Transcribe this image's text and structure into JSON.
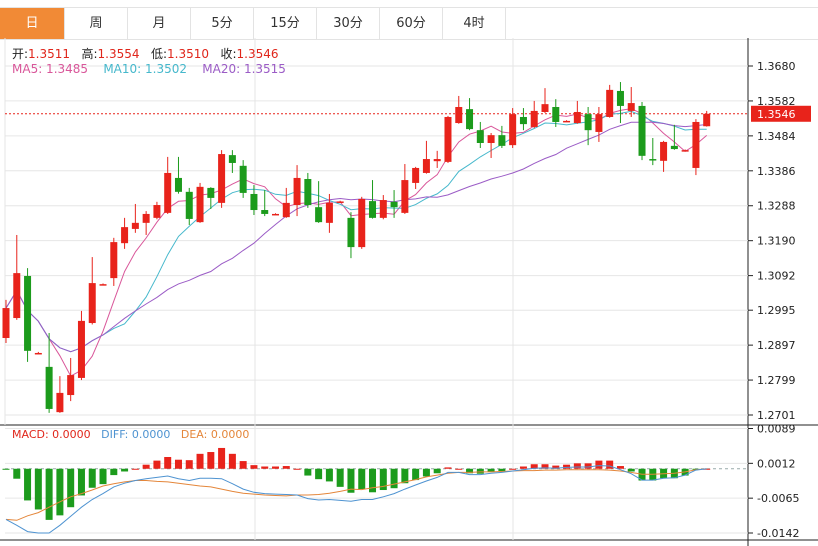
{
  "tabs": [
    {
      "label": "日",
      "active": true
    },
    {
      "label": "周"
    },
    {
      "label": "月"
    },
    {
      "label": "5分"
    },
    {
      "label": "15分"
    },
    {
      "label": "30分"
    },
    {
      "label": "60分"
    },
    {
      "label": "4时"
    }
  ],
  "legend": {
    "open_label": "开:",
    "open": "1.3511",
    "high_label": "高:",
    "high": "1.3554",
    "low_label": "低:",
    "low": "1.3510",
    "close_label": "收:",
    "close": "1.3546",
    "ma5": "MA5: 1.3485",
    "ma10": "MA10: 1.3502",
    "ma20": "MA20: 1.3515"
  },
  "macd_legend": {
    "macd": "MACD: 0.0000",
    "diff": "DIFF: 0.0000",
    "dea": "DEA: 0.0000"
  },
  "colors": {
    "up": "#e8231b",
    "down": "#1c9b1c",
    "accent_tab": "#f18a36",
    "ma5": "#d9579a",
    "ma10": "#46b8cc",
    "ma20": "#9b5cc6",
    "diff": "#4e93d1",
    "dea": "#e4863a"
  },
  "chart_data": [
    {
      "type": "candlestick",
      "up_color_meaning": "red = up, green = down",
      "yticks": [
        "1.3680",
        "1.3582",
        "1.3484",
        "1.3386",
        "1.3288",
        "1.3190",
        "1.3092",
        "1.2995",
        "1.2897",
        "1.2799",
        "1.2701"
      ],
      "ylim": [
        1.268,
        1.377
      ],
      "last_price": "1.3546",
      "grid": true,
      "ohlc": [
        [
          1.2917,
          1.3024,
          1.2903,
          1.3001
        ],
        [
          1.2973,
          1.3206,
          1.2968,
          1.3099
        ],
        [
          1.3091,
          1.3113,
          1.285,
          1.2881
        ],
        [
          1.2875,
          1.2878,
          1.2872,
          1.2875
        ],
        [
          1.2836,
          1.2931,
          1.2707,
          1.2718
        ],
        [
          1.2709,
          1.281,
          1.2707,
          1.2763
        ],
        [
          1.2757,
          1.2861,
          1.274,
          1.2813
        ],
        [
          1.2805,
          1.2993,
          1.2799,
          1.2965
        ],
        [
          1.2959,
          1.3144,
          1.2955,
          1.3071
        ],
        [
          1.3068,
          1.307,
          1.3066,
          1.3068
        ],
        [
          1.3085,
          1.3198,
          1.3063,
          1.3186
        ],
        [
          1.3183,
          1.3254,
          1.3167,
          1.3228
        ],
        [
          1.3223,
          1.3293,
          1.3212,
          1.324
        ],
        [
          1.324,
          1.3273,
          1.3206,
          1.3265
        ],
        [
          1.3254,
          1.3299,
          1.325,
          1.329
        ],
        [
          1.3268,
          1.3425,
          1.3265,
          1.338
        ],
        [
          1.3366,
          1.3425,
          1.3322,
          1.3327
        ],
        [
          1.3327,
          1.3338,
          1.3234,
          1.3251
        ],
        [
          1.3242,
          1.3352,
          1.324,
          1.3341
        ],
        [
          1.3338,
          1.334,
          1.3279,
          1.331
        ],
        [
          1.3296,
          1.3444,
          1.3282,
          1.3433
        ],
        [
          1.343,
          1.3444,
          1.338,
          1.3408
        ],
        [
          1.34,
          1.3416,
          1.331,
          1.3324
        ],
        [
          1.3321,
          1.3346,
          1.3262,
          1.3276
        ],
        [
          1.3276,
          1.3332,
          1.3259,
          1.3265
        ],
        [
          1.3265,
          1.3267,
          1.3263,
          1.3265
        ],
        [
          1.3256,
          1.3338,
          1.3254,
          1.3296
        ],
        [
          1.329,
          1.3402,
          1.3259,
          1.3366
        ],
        [
          1.3363,
          1.338,
          1.3282,
          1.329
        ],
        [
          1.3284,
          1.3357,
          1.324,
          1.3242
        ],
        [
          1.324,
          1.3321,
          1.3212,
          1.3296
        ],
        [
          1.33,
          1.3302,
          1.3298,
          1.33
        ],
        [
          1.3254,
          1.327,
          1.3141,
          1.3172
        ],
        [
          1.3172,
          1.3313,
          1.3167,
          1.3307
        ],
        [
          1.3301,
          1.336,
          1.3252,
          1.3254
        ],
        [
          1.3254,
          1.3318,
          1.325,
          1.3304
        ],
        [
          1.3299,
          1.3332,
          1.3254,
          1.3284
        ],
        [
          1.3268,
          1.3405,
          1.3265,
          1.336
        ],
        [
          1.3352,
          1.3397,
          1.3335,
          1.3394
        ],
        [
          1.338,
          1.347,
          1.3378,
          1.3419
        ],
        [
          1.3413,
          1.3442,
          1.3394,
          1.3419
        ],
        [
          1.3411,
          1.354,
          1.3408,
          1.3537
        ],
        [
          1.352,
          1.3596,
          1.3518,
          1.3565
        ],
        [
          1.3559,
          1.359,
          1.35,
          1.3503
        ],
        [
          1.35,
          1.3523,
          1.345,
          1.3464
        ],
        [
          1.3464,
          1.3492,
          1.3422,
          1.3486
        ],
        [
          1.3486,
          1.3512,
          1.345,
          1.3456
        ],
        [
          1.3458,
          1.3562,
          1.345,
          1.3545
        ],
        [
          1.3537,
          1.3562,
          1.35,
          1.3517
        ],
        [
          1.3509,
          1.3582,
          1.3506,
          1.3554
        ],
        [
          1.3551,
          1.3618,
          1.3548,
          1.3573
        ],
        [
          1.3565,
          1.3587,
          1.3509,
          1.3523
        ],
        [
          1.3526,
          1.3528,
          1.3524,
          1.3526
        ],
        [
          1.352,
          1.3582,
          1.3518,
          1.3551
        ],
        [
          1.3545,
          1.3565,
          1.3458,
          1.35
        ],
        [
          1.3495,
          1.3565,
          1.3467,
          1.3545
        ],
        [
          1.3537,
          1.3627,
          1.3535,
          1.3613
        ],
        [
          1.361,
          1.3635,
          1.352,
          1.3568
        ],
        [
          1.3554,
          1.3621,
          1.3537,
          1.3576
        ],
        [
          1.3568,
          1.3579,
          1.3416,
          1.3428
        ],
        [
          1.3419,
          1.3478,
          1.3402,
          1.3416
        ],
        [
          1.3414,
          1.347,
          1.3383,
          1.3467
        ],
        [
          1.3456,
          1.3515,
          1.3445,
          1.3447
        ],
        [
          1.3444,
          1.3446,
          1.3442,
          1.3444
        ],
        [
          1.3394,
          1.3531,
          1.3374,
          1.3523
        ],
        [
          1.3511,
          1.3554,
          1.351,
          1.3546
        ]
      ],
      "ohlc_order": [
        "open",
        "high",
        "low",
        "close"
      ],
      "moving_averages": [
        5,
        10,
        20
      ]
    },
    {
      "type": "bar+line",
      "yticks": [
        "0.0089",
        "0.0012",
        "-0.0065",
        "-0.0142"
      ],
      "ylim": [
        -0.017,
        0.0096
      ],
      "macd": [
        -0.0001,
        -0.0022,
        -0.007,
        -0.009,
        -0.0113,
        -0.0103,
        -0.0085,
        -0.0059,
        -0.0042,
        -0.0034,
        -0.0014,
        -0.0006,
        0.0,
        0.0009,
        0.0018,
        0.0026,
        0.002,
        0.0019,
        0.0033,
        0.0037,
        0.0046,
        0.0033,
        0.0017,
        0.0008,
        0.0005,
        0.0005,
        0.0006,
        0.0,
        -0.0015,
        -0.0023,
        -0.0028,
        -0.004,
        -0.0053,
        -0.0045,
        -0.0052,
        -0.0047,
        -0.0043,
        -0.0032,
        -0.0025,
        -0.0017,
        -0.001,
        0.0003,
        0.0,
        -0.001,
        -0.0011,
        -0.0007,
        -0.0005,
        0.0,
        0.0005,
        0.001,
        0.001,
        0.0007,
        0.0009,
        0.0012,
        0.0012,
        0.0018,
        0.0018,
        0.0006,
        -0.0006,
        -0.0026,
        -0.0026,
        -0.0021,
        -0.0021,
        -0.0015,
        -0.0002,
        0.0
      ],
      "diff": [
        -0.0112,
        -0.0125,
        -0.0139,
        -0.0142,
        -0.0142,
        -0.0125,
        -0.0105,
        -0.0085,
        -0.0068,
        -0.0055,
        -0.004,
        -0.0032,
        -0.0026,
        -0.0022,
        -0.0019,
        -0.0016,
        -0.0022,
        -0.0026,
        -0.0021,
        -0.0021,
        -0.0022,
        -0.0033,
        -0.0045,
        -0.0052,
        -0.0055,
        -0.0056,
        -0.0057,
        -0.0058,
        -0.0066,
        -0.0069,
        -0.0068,
        -0.007,
        -0.0072,
        -0.0068,
        -0.0068,
        -0.0062,
        -0.0055,
        -0.0045,
        -0.0036,
        -0.0027,
        -0.0019,
        -0.0008,
        -0.0008,
        -0.0013,
        -0.0013,
        -0.001,
        -0.0008,
        -0.0005,
        -0.0002,
        0.0001,
        0.0002,
        0.0001,
        0.0003,
        0.0004,
        0.0004,
        0.0007,
        0.0006,
        -0.0002,
        -0.0011,
        -0.0025,
        -0.0025,
        -0.0021,
        -0.002,
        -0.0014,
        -0.0003,
        0.0
      ],
      "dea": [
        -0.0112,
        -0.0114,
        -0.0104,
        -0.0097,
        -0.0085,
        -0.0073,
        -0.0062,
        -0.0055,
        -0.0047,
        -0.0038,
        -0.0033,
        -0.0029,
        -0.0026,
        -0.0026,
        -0.0028,
        -0.0029,
        -0.0032,
        -0.0035,
        -0.0038,
        -0.004,
        -0.0045,
        -0.005,
        -0.0054,
        -0.0056,
        -0.0058,
        -0.0059,
        -0.006,
        -0.0058,
        -0.0058,
        -0.0057,
        -0.0054,
        -0.005,
        -0.0045,
        -0.0046,
        -0.0042,
        -0.0039,
        -0.0034,
        -0.0029,
        -0.0024,
        -0.0018,
        -0.0014,
        -0.001,
        -0.0008,
        -0.0008,
        -0.0007,
        -0.0007,
        -0.0006,
        -0.0005,
        -0.0004,
        -0.0004,
        -0.0003,
        -0.0003,
        -0.0002,
        -0.0002,
        -0.0002,
        -0.0002,
        -0.0003,
        -0.0005,
        -0.0008,
        -0.0012,
        -0.0012,
        -0.0011,
        -0.001,
        -0.0007,
        -0.0002,
        0.0
      ]
    }
  ]
}
